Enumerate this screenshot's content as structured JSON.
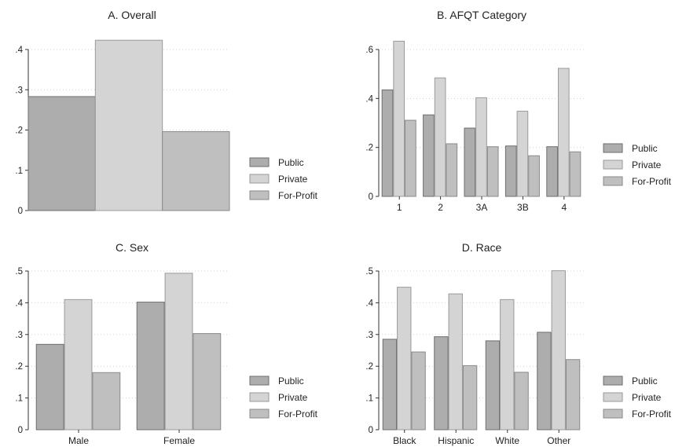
{
  "colors": {
    "Public": "#adadad",
    "Private": "#d4d4d4",
    "For-Profit": "#bfbfbf",
    "Public_stroke": "#6e6e6e",
    "Private_stroke": "#9a9a9a",
    "For-Profit_stroke": "#8a8a8a"
  },
  "chart_data": [
    {
      "id": "A",
      "type": "bar",
      "title": "A. Overall",
      "categories": [
        ""
      ],
      "series": [
        {
          "name": "Public",
          "values": [
            0.283
          ]
        },
        {
          "name": "Private",
          "values": [
            0.423
          ]
        },
        {
          "name": "For-Profit",
          "values": [
            0.196
          ]
        }
      ],
      "ylim": [
        0,
        0.4
      ],
      "yticks": [
        0,
        0.1,
        0.2,
        0.3,
        0.4
      ],
      "ytick_labels": [
        "0",
        ".1",
        ".2",
        ".3",
        ".4"
      ],
      "grid": true,
      "legend": "right",
      "legend_entries": [
        "Public",
        "Private",
        "For-Profit"
      ]
    },
    {
      "id": "B",
      "type": "bar",
      "title": "B. AFQT Category",
      "categories": [
        "1",
        "2",
        "3A",
        "3B",
        "4"
      ],
      "series": [
        {
          "name": "Public",
          "values": [
            0.435,
            0.333,
            0.279,
            0.206,
            0.203
          ]
        },
        {
          "name": "Private",
          "values": [
            0.634,
            0.484,
            0.403,
            0.348,
            0.523
          ]
        },
        {
          "name": "For-Profit",
          "values": [
            0.311,
            0.215,
            0.203,
            0.166,
            0.182
          ]
        }
      ],
      "ylim": [
        0,
        0.6
      ],
      "yticks": [
        0,
        0.2,
        0.4,
        0.6
      ],
      "ytick_labels": [
        "0",
        ".2",
        ".4",
        ".6"
      ],
      "grid": true,
      "legend": "right",
      "legend_entries": [
        "Public",
        "Private",
        "For-Profit"
      ]
    },
    {
      "id": "C",
      "type": "bar",
      "title": "C. Sex",
      "categories": [
        "Male",
        "Female"
      ],
      "series": [
        {
          "name": "Public",
          "values": [
            0.269,
            0.402
          ]
        },
        {
          "name": "Private",
          "values": [
            0.41,
            0.493
          ]
        },
        {
          "name": "For-Profit",
          "values": [
            0.18,
            0.303
          ]
        }
      ],
      "ylim": [
        0,
        0.5
      ],
      "yticks": [
        0,
        0.1,
        0.2,
        0.3,
        0.4,
        0.5
      ],
      "ytick_labels": [
        "0",
        ".1",
        ".2",
        ".3",
        ".4",
        ".5"
      ],
      "grid": true,
      "legend": "right",
      "legend_entries": [
        "Public",
        "Private",
        "For-Profit"
      ]
    },
    {
      "id": "D",
      "type": "bar",
      "title": "D. Race",
      "categories": [
        "Black",
        "Hispanic",
        "White",
        "Other"
      ],
      "series": [
        {
          "name": "Public",
          "values": [
            0.285,
            0.293,
            0.28,
            0.307
          ]
        },
        {
          "name": "Private",
          "values": [
            0.449,
            0.428,
            0.41,
            0.501
          ]
        },
        {
          "name": "For-Profit",
          "values": [
            0.245,
            0.202,
            0.181,
            0.221
          ]
        }
      ],
      "ylim": [
        0,
        0.5
      ],
      "yticks": [
        0,
        0.1,
        0.2,
        0.3,
        0.4,
        0.5
      ],
      "ytick_labels": [
        "0",
        ".1",
        ".2",
        ".3",
        ".4",
        ".5"
      ],
      "grid": true,
      "legend": "right",
      "legend_entries": [
        "Public",
        "Private",
        "For-Profit"
      ]
    }
  ]
}
